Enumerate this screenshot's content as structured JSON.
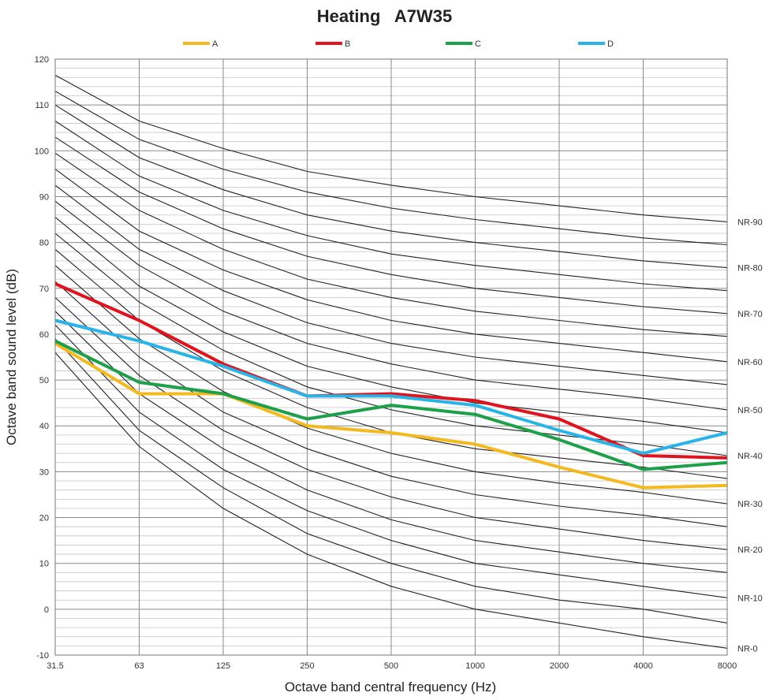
{
  "chart_data": {
    "type": "line",
    "title": "Heating   A7W35",
    "xlabel": "Octave band central frequency (Hz)",
    "ylabel": "Octave band sound level (dB)",
    "categories": [
      "31.5",
      "63",
      "125",
      "250",
      "500",
      "1000",
      "2000",
      "4000",
      "8000"
    ],
    "ylim": [
      -10,
      120
    ],
    "yticks": [
      -10,
      0,
      10,
      20,
      30,
      40,
      50,
      60,
      70,
      80,
      90,
      100,
      110,
      120
    ],
    "grid": true,
    "legend_position": "top",
    "series": [
      {
        "name": "A",
        "color": "#f5b920",
        "values": [
          58,
          47,
          47,
          40,
          38.5,
          36,
          31,
          26.5,
          27
        ]
      },
      {
        "name": "B",
        "color": "#e0141e",
        "values": [
          71,
          63,
          53.5,
          46.5,
          47,
          45.5,
          41.5,
          33.5,
          33
        ]
      },
      {
        "name": "C",
        "color": "#1ea04b",
        "values": [
          58.5,
          49.5,
          47,
          41.5,
          44.5,
          42.5,
          37,
          30.5,
          32
        ]
      },
      {
        "name": "D",
        "color": "#28b4e6",
        "values": [
          63,
          58.5,
          53,
          46.5,
          46.5,
          44.5,
          39,
          34,
          38.5
        ]
      }
    ],
    "nr_curves": {
      "color": "#222222",
      "labeled": [
        "NR-90",
        "NR-80",
        "NR-70",
        "NR-60",
        "NR-50",
        "NR-40",
        "NR-30",
        "NR-20",
        "NR-10",
        "NR-0"
      ],
      "curves": [
        {
          "nr": 90,
          "values": [
            116.5,
            106.5,
            100.5,
            95.5,
            92.5,
            90,
            88,
            86,
            84.5
          ]
        },
        {
          "nr": 85,
          "values": [
            113,
            102.5,
            96,
            91,
            87.5,
            85,
            83,
            81,
            79.5
          ]
        },
        {
          "nr": 80,
          "values": [
            110,
            98.5,
            91.5,
            86,
            82.5,
            80,
            78,
            76,
            74.5
          ]
        },
        {
          "nr": 75,
          "values": [
            106.5,
            94.5,
            87,
            81.5,
            77.5,
            75,
            73,
            71,
            69.5
          ]
        },
        {
          "nr": 70,
          "values": [
            103,
            91,
            83,
            77,
            73,
            70,
            68,
            66,
            64.5
          ]
        },
        {
          "nr": 65,
          "values": [
            99.5,
            87,
            78.5,
            72,
            68,
            65,
            63,
            61,
            59.5
          ]
        },
        {
          "nr": 60,
          "values": [
            96,
            82.5,
            74,
            67.5,
            63,
            60,
            58,
            56,
            54
          ]
        },
        {
          "nr": 55,
          "values": [
            92.5,
            78.5,
            69.5,
            62.5,
            58,
            55,
            53,
            51,
            49
          ]
        },
        {
          "nr": 50,
          "values": [
            89,
            75,
            65,
            58,
            53.5,
            50,
            48,
            46,
            43.5
          ]
        },
        {
          "nr": 45,
          "values": [
            85.5,
            70.5,
            60.5,
            53,
            48.5,
            45,
            43,
            41,
            38.5
          ]
        },
        {
          "nr": 40,
          "values": [
            82,
            67,
            56.5,
            48.5,
            43.5,
            40,
            38,
            36,
            33.5
          ]
        },
        {
          "nr": 35,
          "values": [
            78.5,
            63,
            52,
            44,
            38.5,
            35,
            33,
            31,
            28.5
          ]
        },
        {
          "nr": 30,
          "values": [
            75,
            59,
            47.5,
            39.5,
            34,
            30,
            27.5,
            25.5,
            23
          ]
        },
        {
          "nr": 25,
          "values": [
            71.5,
            55,
            43,
            35,
            29,
            25,
            22.5,
            20.5,
            18
          ]
        },
        {
          "nr": 20,
          "values": [
            68,
            51,
            39,
            30.5,
            24.5,
            20,
            17.5,
            15,
            13
          ]
        },
        {
          "nr": 15,
          "values": [
            65,
            47,
            35,
            26,
            19.5,
            15,
            12.5,
            10,
            8
          ]
        },
        {
          "nr": 10,
          "values": [
            62,
            43,
            30.5,
            21.5,
            15,
            10,
            7.5,
            5,
            2.5
          ]
        },
        {
          "nr": 5,
          "values": [
            59,
            39,
            26.5,
            16.5,
            10,
            5,
            2,
            0,
            -3
          ]
        },
        {
          "nr": 0,
          "values": [
            56,
            35.5,
            22,
            12,
            5,
            0,
            -3,
            -6,
            -8.5
          ]
        }
      ]
    }
  }
}
